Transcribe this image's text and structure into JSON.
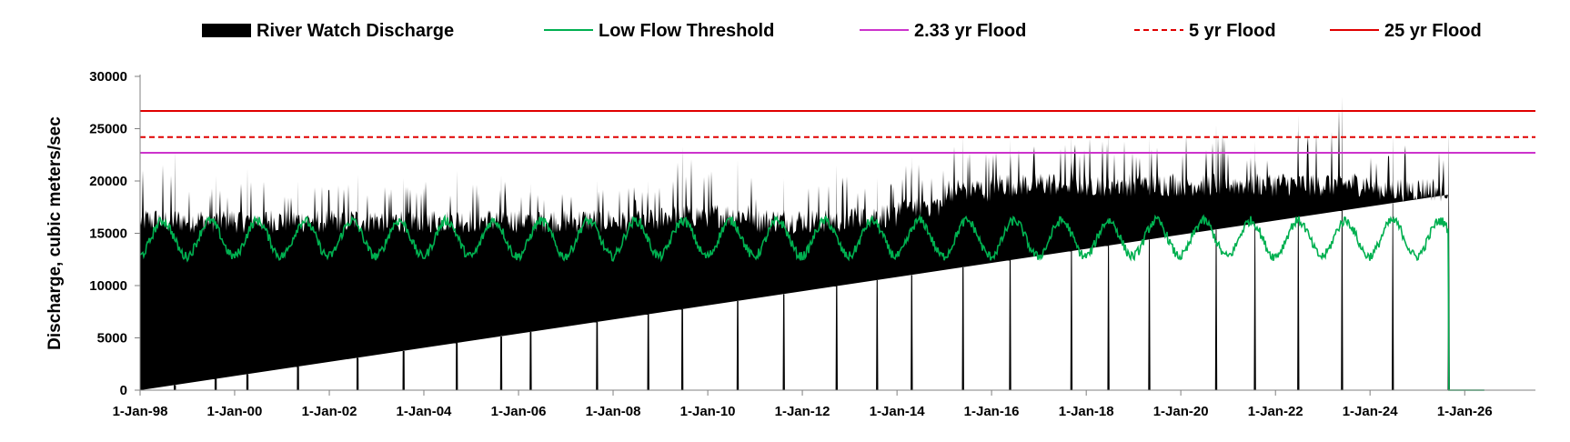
{
  "chart_data": {
    "type": "area",
    "title": "",
    "xlabel": "",
    "ylabel": "Discharge, cubic meters/sec",
    "ylim": [
      0,
      30000
    ],
    "yticks": [
      0,
      5000,
      10000,
      15000,
      20000,
      25000,
      30000
    ],
    "xlim": [
      "1998-01-01",
      "2027-07-01"
    ],
    "xticks": [
      "1-Jan-98",
      "1-Jan-00",
      "1-Jan-02",
      "1-Jan-04",
      "1-Jan-06",
      "1-Jan-08",
      "1-Jan-10",
      "1-Jan-12",
      "1-Jan-14",
      "1-Jan-16",
      "1-Jan-18",
      "1-Jan-20",
      "1-Jan-22",
      "1-Jan-24",
      "1-Jan-26"
    ],
    "legend_position": "top",
    "grid": false,
    "series": [
      {
        "name": "River Watch Discharge",
        "kind": "area",
        "color": "#000000",
        "data_end": "2025-09-01",
        "period_peaks": [
          {
            "period": "1998",
            "baseline": 16500,
            "max": 22800
          },
          {
            "period": "1999",
            "baseline": 16500,
            "max": 20500
          },
          {
            "period": "2000",
            "baseline": 16500,
            "max": 21200
          },
          {
            "period": "2001",
            "baseline": 16500,
            "max": 20000
          },
          {
            "period": "2002",
            "baseline": 16500,
            "max": 20600
          },
          {
            "period": "2003",
            "baseline": 16500,
            "max": 20300
          },
          {
            "period": "2004",
            "baseline": 16500,
            "max": 21000
          },
          {
            "period": "2005",
            "baseline": 16500,
            "max": 20600
          },
          {
            "period": "2006",
            "baseline": 16500,
            "max": 19800
          },
          {
            "period": "2007",
            "baseline": 16500,
            "max": 20000
          },
          {
            "period": "2008",
            "baseline": 16500,
            "max": 20000
          },
          {
            "period": "2009",
            "baseline": 17000,
            "max": 23300
          },
          {
            "period": "2010",
            "baseline": 17000,
            "max": 22000
          },
          {
            "period": "2011",
            "baseline": 16500,
            "max": 20200
          },
          {
            "period": "2012",
            "baseline": 16500,
            "max": 21500
          },
          {
            "period": "2013",
            "baseline": 17000,
            "max": 20300
          },
          {
            "period": "2014",
            "baseline": 18000,
            "max": 22300
          },
          {
            "period": "2015",
            "baseline": 19500,
            "max": 24300
          },
          {
            "period": "2016",
            "baseline": 20000,
            "max": 24000
          },
          {
            "period": "2017",
            "baseline": 20000,
            "max": 24500
          },
          {
            "period": "2018",
            "baseline": 20000,
            "max": 24900
          },
          {
            "period": "2019",
            "baseline": 20000,
            "max": 24200
          },
          {
            "period": "2020",
            "baseline": 20000,
            "max": 25400
          },
          {
            "period": "2021",
            "baseline": 20000,
            "max": 23800
          },
          {
            "period": "2022",
            "baseline": 20000,
            "max": 26300
          },
          {
            "period": "2023",
            "baseline": 20000,
            "max": 28100
          },
          {
            "period": "2024",
            "baseline": 19500,
            "max": 24400
          },
          {
            "period": "2025",
            "baseline": 19500,
            "max": 24700
          }
        ]
      },
      {
        "name": "Low Flow Threshold",
        "kind": "line",
        "color": "#00B050",
        "seasonal_mean": 14500,
        "seasonal_amplitude": 1700,
        "period_years": 1,
        "drops_to_zero_at": "2025-09-01",
        "zero_until": "2026-06-01"
      },
      {
        "name": "2.33 yr Flood",
        "kind": "hline",
        "color": "#CC33CC",
        "dashed": false,
        "value": 22700
      },
      {
        "name": "5 yr Flood",
        "kind": "hline",
        "color": "#E00000",
        "dashed": true,
        "value": 24200
      },
      {
        "name": "25 yr Flood",
        "kind": "hline",
        "color": "#E00000",
        "dashed": false,
        "value": 26700
      }
    ]
  }
}
